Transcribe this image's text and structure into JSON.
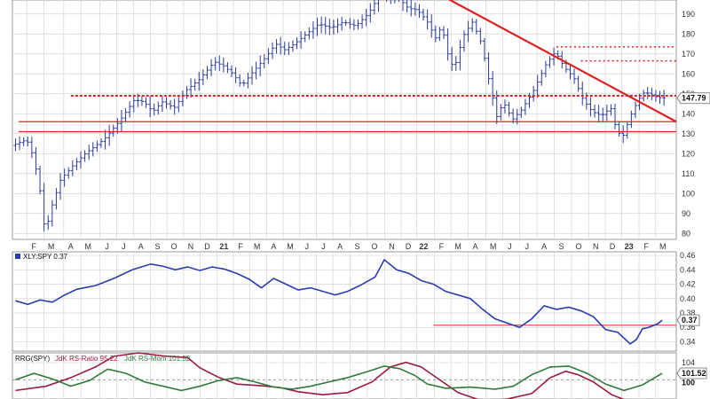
{
  "colors": {
    "price": "#2a3a9a",
    "rs_line": "#2b3bb0",
    "rs_ratio": "#9a1b3c",
    "rs_mom": "#2f7a3a",
    "resistance": "#dd2222",
    "grid": "#d4d4d4",
    "axis_bg": "#ffffff"
  },
  "chart_data": [
    {
      "type": "ohlc",
      "panel": "price",
      "title": "",
      "ylim": [
        77,
        197
      ],
      "yticks": [
        80,
        90,
        100,
        110,
        120,
        130,
        140,
        150,
        160,
        170,
        180,
        190
      ],
      "last_value_label": "147.79",
      "x_labels": [
        {
          "label": "F",
          "t": 0.03
        },
        {
          "label": "M",
          "t": 0.058
        },
        {
          "label": "A",
          "t": 0.09
        },
        {
          "label": "M",
          "t": 0.118
        },
        {
          "label": "J",
          "t": 0.149
        },
        {
          "label": "J",
          "t": 0.176
        },
        {
          "label": "A",
          "t": 0.204
        },
        {
          "label": "S",
          "t": 0.231
        },
        {
          "label": "O",
          "t": 0.258
        },
        {
          "label": "N",
          "t": 0.285
        },
        {
          "label": "D",
          "t": 0.312
        },
        {
          "label": "21",
          "t": 0.339,
          "bold": true
        },
        {
          "label": "F",
          "t": 0.366
        },
        {
          "label": "M",
          "t": 0.393
        },
        {
          "label": "A",
          "t": 0.42
        },
        {
          "label": "M",
          "t": 0.447
        },
        {
          "label": "J",
          "t": 0.474
        },
        {
          "label": "J",
          "t": 0.501
        },
        {
          "label": "A",
          "t": 0.528
        },
        {
          "label": "S",
          "t": 0.556
        },
        {
          "label": "O",
          "t": 0.584
        },
        {
          "label": "N",
          "t": 0.612
        },
        {
          "label": "D",
          "t": 0.639
        },
        {
          "label": "22",
          "t": 0.664,
          "bold": true
        },
        {
          "label": "F",
          "t": 0.693
        },
        {
          "label": "M",
          "t": 0.72
        },
        {
          "label": "A",
          "t": 0.748
        },
        {
          "label": "M",
          "t": 0.777
        },
        {
          "label": "J",
          "t": 0.804
        },
        {
          "label": "J",
          "t": 0.832
        },
        {
          "label": "A",
          "t": 0.86
        },
        {
          "label": "S",
          "t": 0.888
        },
        {
          "label": "O",
          "t": 0.916
        },
        {
          "label": "N",
          "t": 0.944
        },
        {
          "label": "D",
          "t": 0.971
        },
        {
          "label": "23",
          "t": 0.998,
          "bold": true
        },
        {
          "label": "F",
          "t": 1.026
        },
        {
          "label": "M",
          "t": 1.053
        }
      ],
      "keypoints": [
        [
          0.0,
          124
        ],
        [
          0.025,
          127
        ],
        [
          0.035,
          119
        ],
        [
          0.045,
          105
        ],
        [
          0.055,
          80
        ],
        [
          0.065,
          93
        ],
        [
          0.08,
          107
        ],
        [
          0.1,
          114
        ],
        [
          0.12,
          120
        ],
        [
          0.15,
          127
        ],
        [
          0.175,
          136
        ],
        [
          0.2,
          147
        ],
        [
          0.215,
          146
        ],
        [
          0.23,
          141
        ],
        [
          0.245,
          146
        ],
        [
          0.265,
          143
        ],
        [
          0.285,
          152
        ],
        [
          0.305,
          157
        ],
        [
          0.33,
          166
        ],
        [
          0.345,
          164
        ],
        [
          0.36,
          160
        ],
        [
          0.375,
          154
        ],
        [
          0.39,
          160
        ],
        [
          0.41,
          167
        ],
        [
          0.43,
          175
        ],
        [
          0.445,
          172
        ],
        [
          0.46,
          175
        ],
        [
          0.48,
          180
        ],
        [
          0.5,
          185
        ],
        [
          0.52,
          183
        ],
        [
          0.54,
          186
        ],
        [
          0.56,
          184
        ],
        [
          0.58,
          190
        ],
        [
          0.6,
          200
        ],
        [
          0.615,
          198
        ],
        [
          0.63,
          198
        ],
        [
          0.645,
          193
        ],
        [
          0.66,
          192
        ],
        [
          0.675,
          187
        ],
        [
          0.69,
          178
        ],
        [
          0.7,
          184
        ],
        [
          0.71,
          170
        ],
        [
          0.72,
          162
        ],
        [
          0.735,
          179
        ],
        [
          0.75,
          186
        ],
        [
          0.765,
          175
        ],
        [
          0.78,
          152
        ],
        [
          0.79,
          138
        ],
        [
          0.8,
          146
        ],
        [
          0.815,
          137
        ],
        [
          0.83,
          142
        ],
        [
          0.85,
          152
        ],
        [
          0.87,
          165
        ],
        [
          0.885,
          171
        ],
        [
          0.9,
          163
        ],
        [
          0.915,
          158
        ],
        [
          0.93,
          147
        ],
        [
          0.945,
          141
        ],
        [
          0.96,
          139
        ],
        [
          0.975,
          143
        ],
        [
          0.985,
          131
        ],
        [
          0.995,
          129
        ],
        [
          1.01,
          141
        ],
        [
          1.02,
          147
        ],
        [
          1.03,
          151
        ],
        [
          1.045,
          149
        ],
        [
          1.052,
          148
        ]
      ],
      "ohlc_bars": 160,
      "x_extent": 1.055,
      "levels_dashed": [
        149
      ],
      "levels_solid": [
        136,
        131
      ],
      "levels_dotted": [
        {
          "value": 173.5,
          "from": 0.88,
          "to": 1.075
        },
        {
          "value": 166.5,
          "from": 0.92,
          "to": 1.075
        }
      ],
      "trendline": {
        "from": [
          0.695,
          199
        ],
        "to": [
          1.075,
          136
        ]
      }
    },
    {
      "type": "line",
      "panel": "relative_strength",
      "series": [
        {
          "name": "XLY:SPY 0.37"
        }
      ],
      "ylim": [
        0.327,
        0.465
      ],
      "yticks": [
        0.34,
        0.36,
        0.38,
        0.4,
        0.42,
        0.44,
        0.46
      ],
      "last_value_label": "0.37",
      "support": {
        "value": 0.363,
        "from": 0.68,
        "to": 1.075
      },
      "keypoints": [
        [
          0.0,
          0.397
        ],
        [
          0.02,
          0.392
        ],
        [
          0.04,
          0.398
        ],
        [
          0.06,
          0.395
        ],
        [
          0.08,
          0.405
        ],
        [
          0.1,
          0.413
        ],
        [
          0.13,
          0.418
        ],
        [
          0.16,
          0.428
        ],
        [
          0.19,
          0.44
        ],
        [
          0.22,
          0.448
        ],
        [
          0.24,
          0.445
        ],
        [
          0.26,
          0.44
        ],
        [
          0.28,
          0.444
        ],
        [
          0.3,
          0.439
        ],
        [
          0.32,
          0.444
        ],
        [
          0.34,
          0.441
        ],
        [
          0.36,
          0.435
        ],
        [
          0.38,
          0.427
        ],
        [
          0.4,
          0.415
        ],
        [
          0.42,
          0.428
        ],
        [
          0.44,
          0.42
        ],
        [
          0.46,
          0.412
        ],
        [
          0.48,
          0.415
        ],
        [
          0.5,
          0.41
        ],
        [
          0.52,
          0.405
        ],
        [
          0.54,
          0.41
        ],
        [
          0.56,
          0.418
        ],
        [
          0.585,
          0.43
        ],
        [
          0.6,
          0.454
        ],
        [
          0.62,
          0.44
        ],
        [
          0.64,
          0.435
        ],
        [
          0.66,
          0.425
        ],
        [
          0.68,
          0.42
        ],
        [
          0.7,
          0.41
        ],
        [
          0.72,
          0.405
        ],
        [
          0.74,
          0.4
        ],
        [
          0.76,
          0.385
        ],
        [
          0.78,
          0.372
        ],
        [
          0.8,
          0.366
        ],
        [
          0.82,
          0.36
        ],
        [
          0.84,
          0.372
        ],
        [
          0.86,
          0.39
        ],
        [
          0.88,
          0.385
        ],
        [
          0.9,
          0.388
        ],
        [
          0.92,
          0.383
        ],
        [
          0.94,
          0.375
        ],
        [
          0.96,
          0.357
        ],
        [
          0.98,
          0.353
        ],
        [
          1.0,
          0.337
        ],
        [
          1.01,
          0.343
        ],
        [
          1.02,
          0.358
        ],
        [
          1.03,
          0.36
        ],
        [
          1.045,
          0.365
        ],
        [
          1.052,
          0.37
        ]
      ]
    },
    {
      "type": "line",
      "panel": "rrg",
      "series": [
        {
          "name": "JdK RS-Ratio 95.22",
          "color_key": "rs_ratio",
          "keypoints": [
            [
              0.0,
              97.5
            ],
            [
              0.05,
              98.5
            ],
            [
              0.09,
              100.5
            ],
            [
              0.13,
              103.0
            ],
            [
              0.16,
              105.5
            ],
            [
              0.2,
              106.3
            ],
            [
              0.24,
              105.6
            ],
            [
              0.28,
              105.2
            ],
            [
              0.3,
              102.8
            ],
            [
              0.33,
              100.6
            ],
            [
              0.36,
              99.0
            ],
            [
              0.4,
              98.6
            ],
            [
              0.43,
              98.2
            ],
            [
              0.46,
              97.2
            ],
            [
              0.5,
              96.5
            ],
            [
              0.54,
              97.0
            ],
            [
              0.58,
              99.5
            ],
            [
              0.61,
              103.0
            ],
            [
              0.635,
              104.1
            ],
            [
              0.66,
              103.0
            ],
            [
              0.68,
              101.0
            ],
            [
              0.72,
              97.0
            ],
            [
              0.76,
              95.0
            ],
            [
              0.8,
              95.5
            ],
            [
              0.84,
              96.8
            ],
            [
              0.87,
              100.5
            ],
            [
              0.895,
              102.0
            ],
            [
              0.915,
              101.2
            ],
            [
              0.94,
              99.5
            ],
            [
              0.97,
              96.5
            ],
            [
              1.0,
              94.8
            ],
            [
              1.052,
              95.2
            ]
          ]
        },
        {
          "name": "JdK RS-Mom 101.52",
          "color_key": "rs_mom",
          "keypoints": [
            [
              0.0,
              100.0
            ],
            [
              0.03,
              101.5
            ],
            [
              0.06,
              100.2
            ],
            [
              0.09,
              98.5
            ],
            [
              0.12,
              99.8
            ],
            [
              0.15,
              102.5
            ],
            [
              0.18,
              101.5
            ],
            [
              0.21,
              99.5
            ],
            [
              0.24,
              98.5
            ],
            [
              0.27,
              97.5
            ],
            [
              0.3,
              98.5
            ],
            [
              0.33,
              99.8
            ],
            [
              0.36,
              100.5
            ],
            [
              0.39,
              99.5
            ],
            [
              0.42,
              98.3
            ],
            [
              0.45,
              97.8
            ],
            [
              0.48,
              98.5
            ],
            [
              0.51,
              99.5
            ],
            [
              0.54,
              100.5
            ],
            [
              0.57,
              101.8
            ],
            [
              0.6,
              103.2
            ],
            [
              0.625,
              102.6
            ],
            [
              0.65,
              101.0
            ],
            [
              0.67,
              99.0
            ],
            [
              0.7,
              98.0
            ],
            [
              0.74,
              98.3
            ],
            [
              0.78,
              97.8
            ],
            [
              0.81,
              98.5
            ],
            [
              0.84,
              101.2
            ],
            [
              0.87,
              103.0
            ],
            [
              0.9,
              103.2
            ],
            [
              0.93,
              101.5
            ],
            [
              0.96,
              99.0
            ],
            [
              0.99,
              97.5
            ],
            [
              1.02,
              98.8
            ],
            [
              1.052,
              101.5
            ]
          ]
        }
      ],
      "legend_prefix": "RRG(SPY)",
      "ylim": [
        95.5,
        106.3
      ],
      "yticks": [
        100,
        104
      ],
      "reference": 100,
      "last_value_label": "101.52",
      "last_value_label2": "100"
    }
  ]
}
